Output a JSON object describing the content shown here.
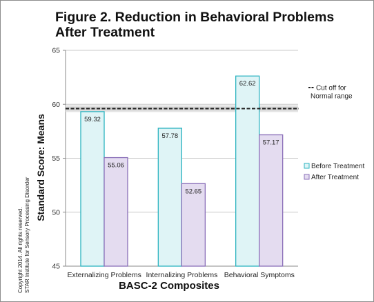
{
  "figure": {
    "title_line1": "Figure 2. Reduction in Behavioral Problems",
    "title_line2": "After Treatment",
    "copyright_line1": "Copyright 2014. All rights reserved.",
    "copyright_line2": "STAR Institute for Sensory Processing Disorder"
  },
  "chart_data": {
    "type": "bar",
    "title": "Figure 2. Reduction in Behavioral Problems After Treatment",
    "xlabel": "BASC-2 Composites",
    "ylabel": "Standard Score: Means",
    "ylim": [
      45,
      65
    ],
    "yticks": [
      45,
      50,
      55,
      60,
      65
    ],
    "grid": true,
    "legend_position": "right",
    "categories": [
      "Externalizing Problems",
      "Internalizing Problems",
      "Behavioral Symptoms"
    ],
    "series": [
      {
        "name": "Before Treatment",
        "values": [
          59.32,
          57.78,
          62.62
        ],
        "labels": [
          "59.32",
          "57.78",
          "62.62"
        ],
        "color": "#dff4f6",
        "stroke": "#2bb3c0"
      },
      {
        "name": "After Treatment",
        "values": [
          55.06,
          52.65,
          57.17
        ],
        "labels": [
          "55.06",
          "52.65",
          "57.17"
        ],
        "color": "#e4dcf0",
        "stroke": "#8a6fb8"
      }
    ],
    "reference_line": {
      "value": 59.6,
      "label_line1": "Cut off for",
      "label_line2": "Normal range",
      "style": "dashed"
    }
  }
}
